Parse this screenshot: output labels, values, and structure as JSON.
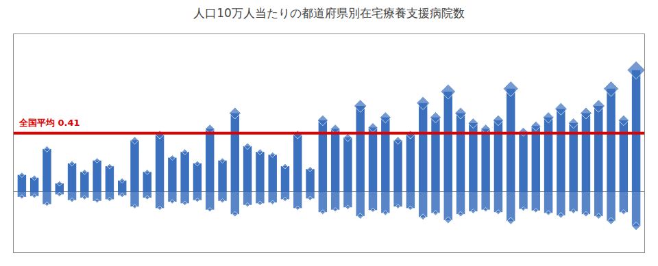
{
  "chart_data": {
    "type": "bar",
    "title": "人口10万人当たりの都道府県別在宅療養支援病院数",
    "series": [
      {
        "color": "#3a70be",
        "marker": "diamond",
        "values": [
          0.12,
          0.1,
          0.3,
          0.06,
          0.2,
          0.14,
          0.22,
          0.18,
          0.08,
          0.36,
          0.14,
          0.4,
          0.24,
          0.28,
          0.2,
          0.44,
          0.22,
          0.55,
          0.32,
          0.28,
          0.26,
          0.18,
          0.4,
          0.16,
          0.5,
          0.44,
          0.38,
          0.6,
          0.45,
          0.52,
          0.36,
          0.4,
          0.62,
          0.52,
          0.7,
          0.55,
          0.48,
          0.44,
          0.5,
          0.72,
          0.42,
          0.46,
          0.52,
          0.58,
          0.48,
          0.55,
          0.6,
          0.72,
          0.5,
          0.85
        ]
      },
      {
        "color": "#3a70be",
        "marker": "diamond",
        "values": [
          -0.0336,
          -0.028,
          -0.084,
          -0.0168,
          -0.056,
          -0.0392,
          -0.0616,
          -0.0504,
          -0.0224,
          -0.1008,
          -0.0392,
          -0.112,
          -0.0672,
          -0.0784,
          -0.056,
          -0.1232,
          -0.0616,
          -0.154,
          -0.0896,
          -0.0784,
          -0.0728,
          -0.0504,
          -0.112,
          -0.0448,
          -0.14,
          -0.1232,
          -0.1064,
          -0.168,
          -0.126,
          -0.1456,
          -0.1008,
          -0.112,
          -0.1736,
          -0.1456,
          -0.196,
          -0.154,
          -0.1344,
          -0.1232,
          -0.14,
          -0.2016,
          -0.1176,
          -0.1288,
          -0.1456,
          -0.1624,
          -0.1344,
          -0.154,
          -0.168,
          -0.2016,
          -0.14,
          -0.238
        ]
      }
    ],
    "annotations": [
      {
        "text": "全国平均 0.41",
        "y": 0.41,
        "color": "#dd0000"
      }
    ],
    "ylim": [
      -0.42,
      1.1
    ],
    "grid": false,
    "tick_labels": false
  }
}
